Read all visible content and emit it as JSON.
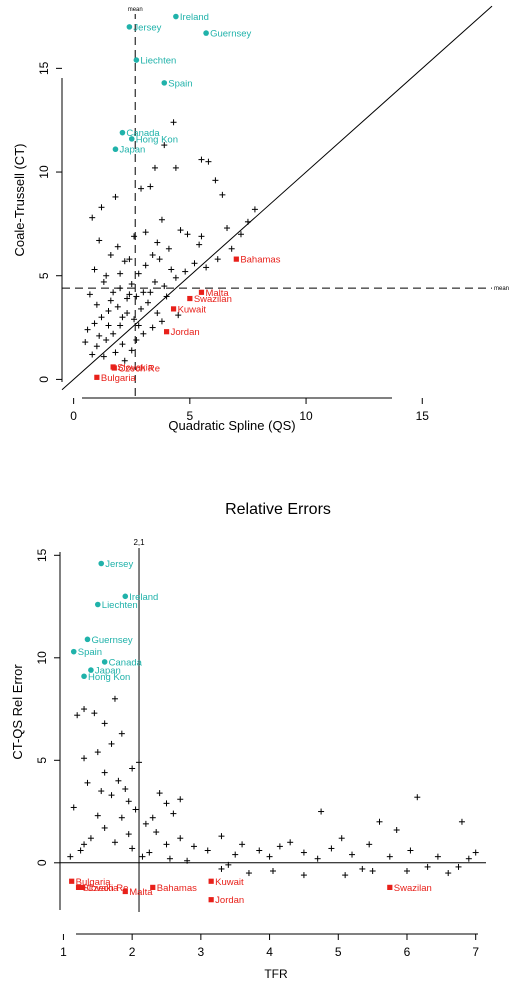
{
  "colors": {
    "high": "#20b2aa",
    "low": "#e8201a",
    "ink": "#000000"
  },
  "chart_data": [
    {
      "type": "scatter",
      "title": "",
      "xlabel": "Quadratic Spline (QS)",
      "ylabel": "Coale-Trussell (CT)",
      "xlim": [
        -0.5,
        18
      ],
      "ylim": [
        -0.8,
        18.2
      ],
      "xticks": [
        "0",
        "5",
        "10",
        "15"
      ],
      "yticks": [
        "0",
        "5",
        "10",
        "15"
      ],
      "reference_lines": {
        "identity_line": "y = x",
        "vline_label": "mean",
        "hline_label": "mean",
        "mean_x": 2.65,
        "mean_y": 4.4
      },
      "labeled_high": [
        {
          "label": "Ireland",
          "x": 4.4,
          "y": 17.5
        },
        {
          "label": "Jersey",
          "x": 2.4,
          "y": 17.0
        },
        {
          "label": "Guernsey",
          "x": 5.7,
          "y": 16.7
        },
        {
          "label": "Liechten",
          "x": 2.7,
          "y": 15.4
        },
        {
          "label": "Spain",
          "x": 3.9,
          "y": 14.3
        },
        {
          "label": "Canada",
          "x": 2.1,
          "y": 11.9
        },
        {
          "label": "Hong Kon",
          "x": 2.5,
          "y": 11.6
        },
        {
          "label": "Japan",
          "x": 1.8,
          "y": 11.1
        }
      ],
      "labeled_low": [
        {
          "label": "Bahamas",
          "x": 7.0,
          "y": 5.8
        },
        {
          "label": "Malta",
          "x": 5.5,
          "y": 4.2
        },
        {
          "label": "Swazilan",
          "x": 5.0,
          "y": 3.9
        },
        {
          "label": "Kuwait",
          "x": 4.3,
          "y": 3.4
        },
        {
          "label": "Jordan",
          "x": 4.0,
          "y": 2.3
        },
        {
          "label": "Slovakia",
          "x": 1.7,
          "y": 0.6
        },
        {
          "label": "Czech Re",
          "x": 1.75,
          "y": 0.55
        },
        {
          "label": "Bulgaria",
          "x": 1.0,
          "y": 0.1
        }
      ],
      "points": [
        [
          1.2,
          8.3
        ],
        [
          0.8,
          7.8
        ],
        [
          1.8,
          8.8
        ],
        [
          2.9,
          9.2
        ],
        [
          3.5,
          10.2
        ],
        [
          4.3,
          12.4
        ],
        [
          3.9,
          11.3
        ],
        [
          4.4,
          10.2
        ],
        [
          5.5,
          10.6
        ],
        [
          6.1,
          9.6
        ],
        [
          5.8,
          10.5
        ],
        [
          6.4,
          8.9
        ],
        [
          7.5,
          7.6
        ],
        [
          7.8,
          8.2
        ],
        [
          6.8,
          6.3
        ],
        [
          7.2,
          7.0
        ],
        [
          5.4,
          6.5
        ],
        [
          4.6,
          7.2
        ],
        [
          4.1,
          6.3
        ],
        [
          3.8,
          7.7
        ],
        [
          3.3,
          9.3
        ],
        [
          1.1,
          6.7
        ],
        [
          1.6,
          6.0
        ],
        [
          2.2,
          5.7
        ],
        [
          2.4,
          5.8
        ],
        [
          2.0,
          5.1
        ],
        [
          1.3,
          4.7
        ],
        [
          0.9,
          5.3
        ],
        [
          1.7,
          4.2
        ],
        [
          2.5,
          4.6
        ],
        [
          2.3,
          3.9
        ],
        [
          1.9,
          3.5
        ],
        [
          1.5,
          3.3
        ],
        [
          1.2,
          3.0
        ],
        [
          0.9,
          2.7
        ],
        [
          0.6,
          2.4
        ],
        [
          1.1,
          2.1
        ],
        [
          1.4,
          1.9
        ],
        [
          1.7,
          2.2
        ],
        [
          2.0,
          2.6
        ],
        [
          2.6,
          2.9
        ],
        [
          2.9,
          3.4
        ],
        [
          3.2,
          3.7
        ],
        [
          3.6,
          3.2
        ],
        [
          3.9,
          4.5
        ],
        [
          4.4,
          4.9
        ],
        [
          4.8,
          5.2
        ],
        [
          5.2,
          5.6
        ],
        [
          5.7,
          5.4
        ],
        [
          6.2,
          5.8
        ],
        [
          2.8,
          5.1
        ],
        [
          3.1,
          5.5
        ],
        [
          3.4,
          6.0
        ],
        [
          3.7,
          5.8
        ],
        [
          4.2,
          5.3
        ],
        [
          2.1,
          1.7
        ],
        [
          2.5,
          1.4
        ],
        [
          1.8,
          1.3
        ],
        [
          1.3,
          1.1
        ],
        [
          2.2,
          0.9
        ],
        [
          2.7,
          1.9
        ],
        [
          3.0,
          2.2
        ],
        [
          3.4,
          2.5
        ],
        [
          3.8,
          2.8
        ],
        [
          4.5,
          3.1
        ],
        [
          1.0,
          1.6
        ],
        [
          0.8,
          1.2
        ],
        [
          0.5,
          1.8
        ],
        [
          1.6,
          3.8
        ],
        [
          2.0,
          4.4
        ],
        [
          2.4,
          4.1
        ],
        [
          2.7,
          4.0
        ],
        [
          3.0,
          4.2
        ],
        [
          3.5,
          4.7
        ],
        [
          4.0,
          4.0
        ],
        [
          1.9,
          6.4
        ],
        [
          2.6,
          6.9
        ],
        [
          3.1,
          7.1
        ],
        [
          3.6,
          6.6
        ],
        [
          4.9,
          7.0
        ],
        [
          5.5,
          6.9
        ],
        [
          6.6,
          7.3
        ],
        [
          2.3,
          3.2
        ],
        [
          2.8,
          2.6
        ],
        [
          1.5,
          2.6
        ],
        [
          1.0,
          3.6
        ],
        [
          0.7,
          4.1
        ],
        [
          1.4,
          5.0
        ],
        [
          3.3,
          4.2
        ],
        [
          2.1,
          3.0
        ]
      ]
    },
    {
      "type": "scatter",
      "title": "Relative Errors",
      "xlabel": "TFR",
      "ylabel": "CT-QS Rel Error",
      "xlim": [
        0.95,
        7.15
      ],
      "ylim": [
        -2.4,
        15.6
      ],
      "xticks": [
        "1",
        "2",
        "3",
        "4",
        "5",
        "6",
        "7"
      ],
      "yticks": [
        "0",
        "5",
        "10",
        "15"
      ],
      "reference_lines": {
        "vline_label": "2,1",
        "tfr_vline": 2.1,
        "zero_line": 0
      },
      "labeled_high": [
        {
          "label": "Jersey",
          "x": 1.55,
          "y": 14.6
        },
        {
          "label": "Ireland",
          "x": 1.9,
          "y": 13.0
        },
        {
          "label": "Liechten",
          "x": 1.5,
          "y": 12.6
        },
        {
          "label": "Guernsey",
          "x": 1.35,
          "y": 10.9
        },
        {
          "label": "Spain",
          "x": 1.15,
          "y": 10.3
        },
        {
          "label": "Canada",
          "x": 1.6,
          "y": 9.8
        },
        {
          "label": "Japan",
          "x": 1.4,
          "y": 9.4
        },
        {
          "label": "Hong Kon",
          "x": 1.3,
          "y": 9.1
        }
      ],
      "labeled_low": [
        {
          "label": "Bulgaria",
          "x": 1.12,
          "y": -0.9
        },
        {
          "label": "Slovakia",
          "x": 1.22,
          "y": -1.2
        },
        {
          "label": "Czech Re",
          "x": 1.28,
          "y": -1.2
        },
        {
          "label": "Malta",
          "x": 1.9,
          "y": -1.4
        },
        {
          "label": "Bahamas",
          "x": 2.3,
          "y": -1.2
        },
        {
          "label": "Kuwait",
          "x": 3.15,
          "y": -0.9
        },
        {
          "label": "Jordan",
          "x": 3.15,
          "y": -1.8
        },
        {
          "label": "Swazilan",
          "x": 5.75,
          "y": -1.2
        }
      ],
      "points": [
        [
          1.2,
          7.2
        ],
        [
          1.3,
          7.5
        ],
        [
          1.45,
          7.3
        ],
        [
          1.6,
          6.8
        ],
        [
          1.75,
          8.0
        ],
        [
          1.85,
          6.3
        ],
        [
          1.7,
          5.8
        ],
        [
          1.5,
          5.4
        ],
        [
          1.3,
          5.1
        ],
        [
          1.6,
          4.4
        ],
        [
          1.8,
          4.0
        ],
        [
          1.9,
          3.6
        ],
        [
          1.7,
          3.3
        ],
        [
          1.55,
          3.5
        ],
        [
          1.95,
          3.0
        ],
        [
          2.05,
          2.6
        ],
        [
          2.1,
          4.9
        ],
        [
          2.0,
          4.6
        ],
        [
          2.4,
          3.4
        ],
        [
          2.5,
          2.9
        ],
        [
          2.6,
          2.4
        ],
        [
          2.35,
          1.5
        ],
        [
          2.2,
          1.9
        ],
        [
          1.85,
          2.2
        ],
        [
          1.6,
          1.7
        ],
        [
          1.4,
          1.2
        ],
        [
          1.25,
          0.6
        ],
        [
          1.1,
          0.3
        ],
        [
          1.3,
          0.9
        ],
        [
          1.75,
          1.0
        ],
        [
          2.0,
          0.7
        ],
        [
          2.25,
          0.5
        ],
        [
          2.5,
          0.9
        ],
        [
          2.7,
          1.2
        ],
        [
          2.9,
          0.8
        ],
        [
          3.1,
          0.6
        ],
        [
          3.3,
          1.3
        ],
        [
          3.5,
          0.4
        ],
        [
          3.6,
          0.9
        ],
        [
          3.85,
          0.6
        ],
        [
          4.0,
          0.3
        ],
        [
          4.15,
          0.8
        ],
        [
          4.3,
          1.0
        ],
        [
          4.5,
          0.5
        ],
        [
          4.7,
          0.2
        ],
        [
          4.75,
          2.5
        ],
        [
          4.9,
          0.7
        ],
        [
          5.05,
          1.2
        ],
        [
          5.2,
          0.4
        ],
        [
          5.35,
          -0.3
        ],
        [
          5.45,
          0.9
        ],
        [
          5.6,
          2.0
        ],
        [
          5.75,
          0.3
        ],
        [
          5.85,
          1.6
        ],
        [
          6.05,
          0.6
        ],
        [
          6.15,
          3.2
        ],
        [
          6.3,
          -0.2
        ],
        [
          6.45,
          0.3
        ],
        [
          6.6,
          -0.5
        ],
        [
          6.8,
          2.0
        ],
        [
          6.9,
          0.2
        ],
        [
          7.0,
          0.5
        ],
        [
          3.3,
          -0.3
        ],
        [
          3.7,
          -0.5
        ],
        [
          4.05,
          -0.4
        ],
        [
          4.5,
          -0.6
        ],
        [
          5.1,
          -0.6
        ],
        [
          5.5,
          -0.4
        ],
        [
          6.0,
          -0.4
        ],
        [
          6.75,
          -0.2
        ],
        [
          2.55,
          0.2
        ],
        [
          2.8,
          0.1
        ],
        [
          3.4,
          -0.1
        ],
        [
          2.15,
          0.3
        ],
        [
          1.95,
          1.4
        ],
        [
          2.3,
          2.2
        ],
        [
          2.7,
          3.1
        ],
        [
          1.35,
          3.9
        ],
        [
          1.15,
          2.7
        ],
        [
          1.5,
          2.3
        ]
      ]
    }
  ]
}
